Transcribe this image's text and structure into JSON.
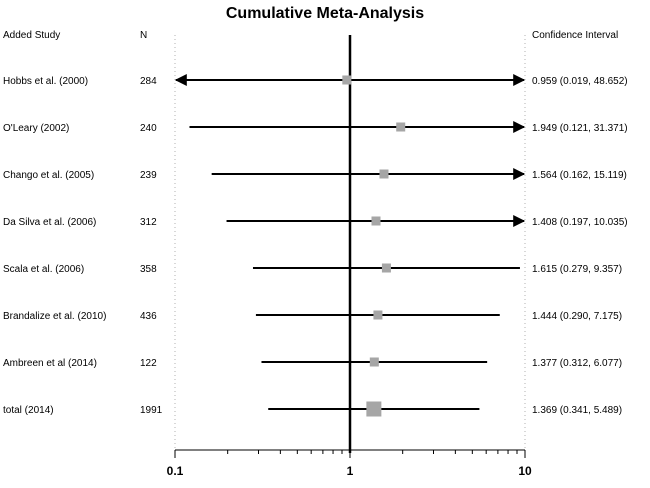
{
  "chart_data": {
    "type": "forest",
    "title": "Cumulative Meta-Analysis",
    "headers": {
      "study": "Added Study",
      "n": "N",
      "ci": "Confidence Interval"
    },
    "x_scale": "log",
    "xlim": [
      0.1,
      10
    ],
    "reference_line": 1,
    "x_ticks": [
      "0.1",
      "1",
      "10"
    ],
    "rows": [
      {
        "study": "Hobbs et al. (2000)",
        "n": "284",
        "estimate": 0.959,
        "lower": 0.019,
        "upper": 48.652,
        "ci_text": "0.959 (0.019, 48.652)"
      },
      {
        "study": "O'Leary (2002)",
        "n": "240",
        "estimate": 1.949,
        "lower": 0.121,
        "upper": 31.371,
        "ci_text": "1.949 (0.121, 31.371)"
      },
      {
        "study": "Chango et al. (2005)",
        "n": "239",
        "estimate": 1.564,
        "lower": 0.162,
        "upper": 15.119,
        "ci_text": "1.564 (0.162, 15.119)"
      },
      {
        "study": "Da Silva et al. (2006)",
        "n": "312",
        "estimate": 1.408,
        "lower": 0.197,
        "upper": 10.035,
        "ci_text": "1.408 (0.197, 10.035)"
      },
      {
        "study": "Scala et al. (2006)",
        "n": "358",
        "estimate": 1.615,
        "lower": 0.279,
        "upper": 9.357,
        "ci_text": "1.615 (0.279, 9.357)"
      },
      {
        "study": "Brandalize et al. (2010)",
        "n": "436",
        "estimate": 1.444,
        "lower": 0.29,
        "upper": 7.175,
        "ci_text": "1.444 (0.290, 7.175)"
      },
      {
        "study": "Ambreen et al (2014)",
        "n": "122",
        "estimate": 1.377,
        "lower": 0.312,
        "upper": 6.077,
        "ci_text": "1.377 (0.312, 6.077)"
      },
      {
        "study": "total (2014)",
        "n": "1991",
        "estimate": 1.369,
        "lower": 0.341,
        "upper": 5.489,
        "ci_text": "1.369 (0.341, 5.489)"
      }
    ],
    "colors": {
      "line": "#000000",
      "marker": "#a6a6a6",
      "guide": "#b0b0b0"
    }
  }
}
